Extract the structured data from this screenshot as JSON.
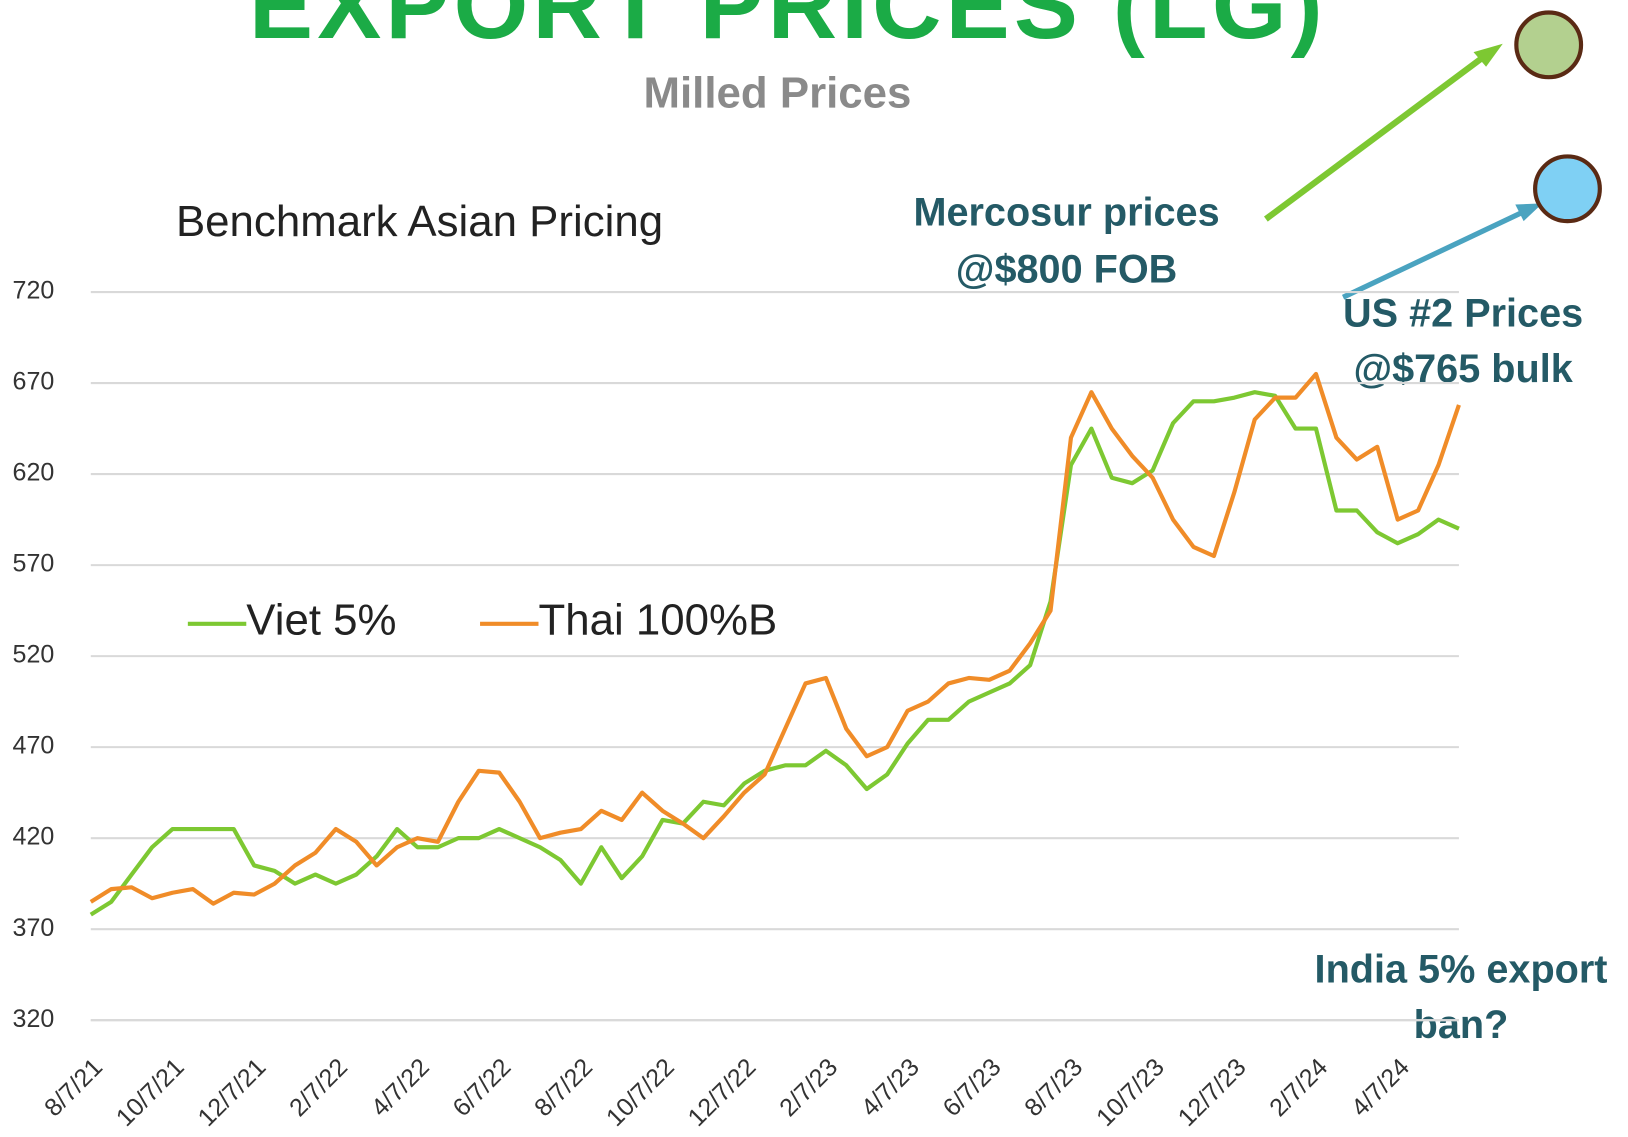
{
  "chart_data": {
    "type": "line",
    "title": "EXPORT PRICES (LG)",
    "subtitle": "Milled Prices",
    "chart_title": "Benchmark Asian Pricing",
    "annotations": [
      "Mercosur prices",
      "@$800 FOB",
      "US #2 Prices",
      "@$765 bulk",
      "India 5% export",
      "ban?"
    ],
    "categories": [
      "8/7/21",
      null,
      null,
      null,
      "10/7/21",
      null,
      null,
      null,
      "12/7/21",
      null,
      null,
      null,
      "2/7/22",
      null,
      null,
      null,
      "4/7/22",
      null,
      null,
      null,
      "6/7/22",
      null,
      null,
      null,
      "8/7/22",
      null,
      null,
      null,
      "10/7/22",
      null,
      null,
      null,
      "12/7/22",
      null,
      null,
      null,
      "2/7/23",
      null,
      null,
      null,
      "4/7/23",
      null,
      null,
      null,
      "6/7/23",
      null,
      null,
      null,
      "8/7/23",
      null,
      null,
      null,
      "10/7/23",
      null,
      null,
      null,
      "12/7/23",
      null,
      null,
      null,
      "2/7/24",
      null,
      null,
      null,
      "4/7/24",
      null,
      null,
      null
    ],
    "series": [
      {
        "name": "Viet 5%",
        "color": "#7dc832",
        "values": [
          378,
          385,
          400,
          415,
          425,
          425,
          425,
          425,
          405,
          402,
          395,
          400,
          395,
          400,
          410,
          425,
          415,
          415,
          420,
          420,
          425,
          420,
          415,
          408,
          395,
          415,
          398,
          410,
          430,
          428,
          440,
          438,
          450,
          457,
          460,
          460,
          468,
          460,
          447,
          455,
          472,
          485,
          485,
          495,
          500,
          505,
          515,
          550,
          625,
          645,
          618,
          615,
          622,
          648,
          660,
          660,
          662,
          665,
          663,
          645,
          645,
          600,
          600,
          588,
          582,
          587,
          595,
          590
        ]
      },
      {
        "name": "Thai 100%B",
        "color": "#f08c28",
        "values": [
          385,
          392,
          393,
          387,
          390,
          392,
          384,
          390,
          389,
          395,
          405,
          412,
          425,
          418,
          405,
          415,
          420,
          418,
          440,
          457,
          456,
          440,
          420,
          423,
          425,
          435,
          430,
          445,
          435,
          428,
          420,
          432,
          445,
          455,
          480,
          505,
          508,
          480,
          465,
          470,
          490,
          495,
          505,
          508,
          507,
          512,
          527,
          545,
          640,
          665,
          645,
          630,
          618,
          595,
          580,
          575,
          610,
          650,
          662,
          662,
          675,
          640,
          628,
          635,
          595,
          600,
          625,
          658
        ]
      }
    ],
    "ylim": [
      320,
      720
    ],
    "yticks": [
      320,
      370,
      420,
      470,
      520,
      570,
      620,
      670,
      720
    ],
    "grid": true,
    "legend": "left"
  }
}
